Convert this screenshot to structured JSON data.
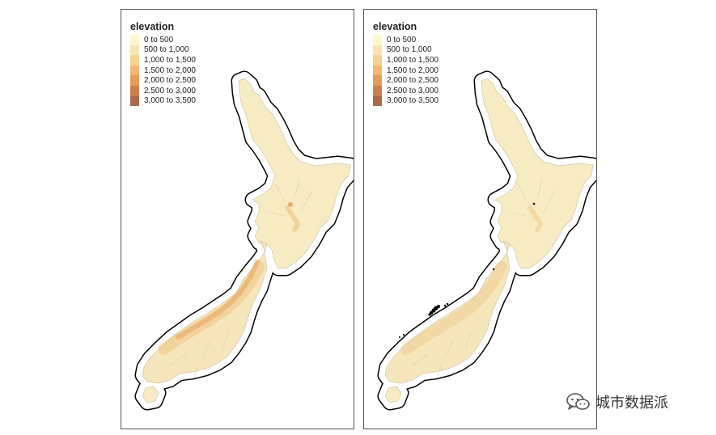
{
  "maps": [
    {
      "legend": {
        "title": "elevation",
        "items": [
          {
            "label": "0 to 500",
            "color": "#fdf7cf"
          },
          {
            "label": "500 to 1,000",
            "color": "#f7e6b3"
          },
          {
            "label": "1,000 to 1,500",
            "color": "#f5d493"
          },
          {
            "label": "1,500 to 2,000",
            "color": "#f0b973"
          },
          {
            "label": "2,000 to 2,500",
            "color": "#e39c5c"
          },
          {
            "label": "2,500 to 3,000",
            "color": "#c97f4e"
          },
          {
            "label": "3,000 to 3,500",
            "color": "#a96a4c"
          }
        ]
      },
      "highlight_points": false
    },
    {
      "legend": {
        "title": "elevation",
        "items": [
          {
            "label": "0 to 500",
            "color": "#fdf7cf"
          },
          {
            "label": "500 to 1,000",
            "color": "#f7e6b3"
          },
          {
            "label": "1,000 to 1,500",
            "color": "#f5d493"
          },
          {
            "label": "1,500 to 2,000",
            "color": "#f0b973"
          },
          {
            "label": "2,000 to 2,500",
            "color": "#e39c5c"
          },
          {
            "label": "2,500 to 3,000",
            "color": "#c97f4e"
          },
          {
            "label": "3,000 to 3,500",
            "color": "#a96a4c"
          }
        ]
      },
      "highlight_points": true
    }
  ],
  "watermark": {
    "icon": "wechat-icon",
    "label": "城市数据派"
  }
}
